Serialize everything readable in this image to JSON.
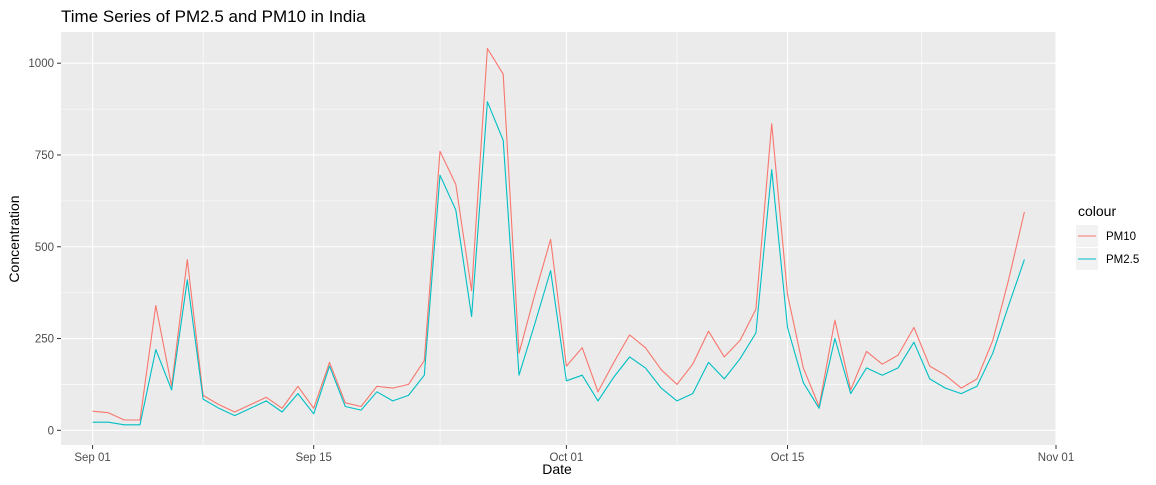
{
  "chart_data": {
    "type": "line",
    "title": "Time Series of PM2.5 and PM10 in India",
    "xlabel": "Date",
    "ylabel": "Concentration",
    "x_range": [
      "2023-08-30",
      "2023-11-01"
    ],
    "ylim": [
      -40,
      1085
    ],
    "x_ticks": [
      {
        "date": "2023-09-01",
        "label": "Sep 01"
      },
      {
        "date": "2023-09-15",
        "label": "Sep 15"
      },
      {
        "date": "2023-10-01",
        "label": "Oct 01"
      },
      {
        "date": "2023-10-15",
        "label": "Oct 15"
      },
      {
        "date": "2023-11-01",
        "label": "Nov 01"
      }
    ],
    "y_ticks": [
      {
        "value": 0,
        "label": "0"
      },
      {
        "value": 250,
        "label": "250"
      },
      {
        "value": 500,
        "label": "500"
      },
      {
        "value": 750,
        "label": "750"
      },
      {
        "value": 1000,
        "label": "1000"
      }
    ],
    "grid": true,
    "legend": {
      "title": "colour",
      "position": "right"
    },
    "x": [
      "2023-09-01",
      "2023-09-02",
      "2023-09-03",
      "2023-09-04",
      "2023-09-05",
      "2023-09-06",
      "2023-09-07",
      "2023-09-08",
      "2023-09-09",
      "2023-09-10",
      "2023-09-11",
      "2023-09-12",
      "2023-09-13",
      "2023-09-14",
      "2023-09-15",
      "2023-09-16",
      "2023-09-17",
      "2023-09-18",
      "2023-09-19",
      "2023-09-20",
      "2023-09-21",
      "2023-09-22",
      "2023-09-23",
      "2023-09-24",
      "2023-09-25",
      "2023-09-26",
      "2023-09-27",
      "2023-09-28",
      "2023-09-29",
      "2023-09-30",
      "2023-10-01",
      "2023-10-02",
      "2023-10-03",
      "2023-10-04",
      "2023-10-05",
      "2023-10-06",
      "2023-10-07",
      "2023-10-08",
      "2023-10-09",
      "2023-10-10",
      "2023-10-11",
      "2023-10-12",
      "2023-10-13",
      "2023-10-14",
      "2023-10-15",
      "2023-10-16",
      "2023-10-17",
      "2023-10-18",
      "2023-10-19",
      "2023-10-20",
      "2023-10-21",
      "2023-10-22",
      "2023-10-23",
      "2023-10-24",
      "2023-10-25",
      "2023-10-26",
      "2023-10-27",
      "2023-10-28",
      "2023-10-29",
      "2023-10-30"
    ],
    "series": [
      {
        "name": "PM10",
        "color": "#F8766D",
        "values": [
          52,
          48,
          28,
          28,
          340,
          120,
          465,
          95,
          70,
          50,
          70,
          90,
          60,
          120,
          60,
          185,
          75,
          65,
          120,
          115,
          125,
          190,
          760,
          670,
          380,
          1040,
          970,
          210,
          370,
          520,
          175,
          225,
          105,
          185,
          260,
          225,
          165,
          125,
          180,
          270,
          200,
          245,
          330,
          835,
          370,
          170,
          65,
          300,
          110,
          215,
          180,
          205,
          280,
          175,
          150,
          115,
          140,
          245,
          410,
          595
        ]
      },
      {
        "name": "PM2.5",
        "color": "#00BFC4",
        "values": [
          22,
          22,
          15,
          15,
          220,
          110,
          410,
          85,
          60,
          40,
          60,
          80,
          50,
          100,
          45,
          175,
          65,
          55,
          105,
          80,
          95,
          150,
          695,
          600,
          310,
          895,
          790,
          150,
          290,
          435,
          135,
          150,
          80,
          145,
          200,
          170,
          115,
          80,
          100,
          185,
          140,
          195,
          265,
          710,
          280,
          130,
          60,
          250,
          100,
          170,
          150,
          170,
          240,
          140,
          115,
          100,
          120,
          210,
          340,
          465
        ]
      }
    ]
  }
}
